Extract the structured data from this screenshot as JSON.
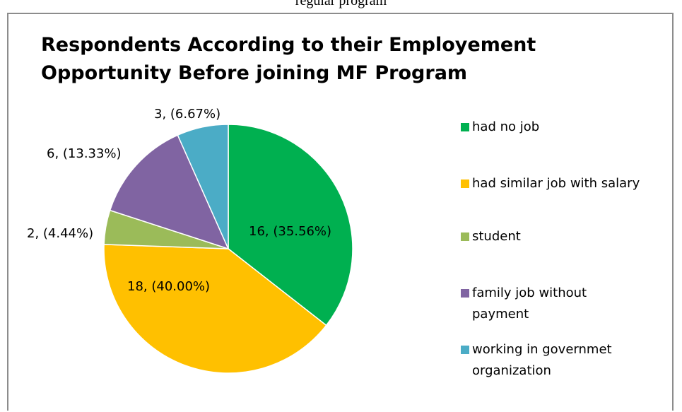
{
  "caption_fragment": "regular program",
  "chart_data": {
    "type": "pie",
    "title_lines": [
      "Respondents According to their Employement",
      "Opportunity Before joining MF Program"
    ],
    "slices": [
      {
        "name": "had no job",
        "value": 16,
        "percent": 35.56,
        "label": "16, (35.56%)",
        "color": "#00b050"
      },
      {
        "name": "had similar job with salary",
        "value": 18,
        "percent": 40.0,
        "label": "18, (40.00%)",
        "color": "#ffc000"
      },
      {
        "name": "student",
        "value": 2,
        "percent": 4.44,
        "label": "2, (4.44%)",
        "color": "#9bbb59"
      },
      {
        "name": "family job without payment",
        "value": 6,
        "percent": 13.33,
        "label": "6, (13.33%)",
        "color": "#8064a2"
      },
      {
        "name": "working in governmet organization",
        "value": 3,
        "percent": 6.67,
        "label": "3, (6.67%)",
        "color": "#4bacc6"
      }
    ],
    "legend_placement": "right"
  }
}
